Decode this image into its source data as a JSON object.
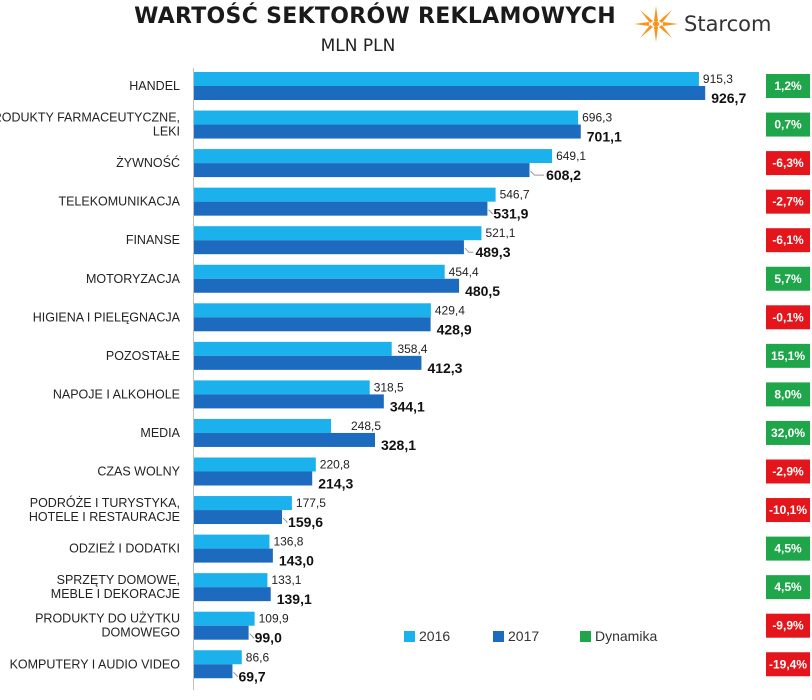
{
  "header": {
    "title": "WARTOŚĆ SEKTORÓW REKLAMOWYCH",
    "subtitle": "MLN PLN",
    "logo_text": "Starcom"
  },
  "colors": {
    "bar_2016": "#1ab1ec",
    "bar_2017": "#1d6bbf",
    "positive": "#1fa64a",
    "negative": "#e4161b",
    "axis": "#bfbfbf"
  },
  "chart_data": {
    "type": "bar",
    "orientation": "horizontal",
    "title": "WARTOŚĆ SEKTORÓW REKLAMOWYCH",
    "subtitle": "MLN PLN",
    "categories": [
      [
        "HANDEL"
      ],
      [
        "PRODUKTY FARMACEUTYCZNE,",
        "LEKI"
      ],
      [
        "ŻYWNOŚĆ"
      ],
      [
        "TELEKOMUNIKACJA"
      ],
      [
        "FINANSE"
      ],
      [
        "MOTORYZACJA"
      ],
      [
        "HIGIENA I PIELĘGNACJA"
      ],
      [
        "POZOSTAŁE"
      ],
      [
        "NAPOJE I ALKOHOLE"
      ],
      [
        "MEDIA"
      ],
      [
        "CZAS WOLNY"
      ],
      [
        "PODRÓŻE I TURYSTYKA,",
        "HOTELE I RESTAURACJE"
      ],
      [
        "ODZIEŻ I DODATKI"
      ],
      [
        "SPRZĘTY DOMOWE,",
        "MEBLE I DEKORACJE"
      ],
      [
        "PRODUKTY DO UŻYTKU",
        "DOMOWEGO"
      ],
      [
        "KOMPUTERY I AUDIO VIDEO"
      ]
    ],
    "series": [
      {
        "name": "2016",
        "values": [
          915.3,
          696.3,
          649.1,
          546.7,
          521.1,
          454.4,
          429.4,
          358.4,
          318.5,
          248.5,
          220.8,
          177.5,
          136.8,
          133.1,
          109.9,
          86.6
        ],
        "labels": [
          "915,3",
          "696,3",
          "649,1",
          "546,7",
          "521,1",
          "454,4",
          "429,4",
          "358,4",
          "318,5",
          "248,5",
          "220,8",
          "177,5",
          "136,8",
          "133,1",
          "109,9",
          "86,6"
        ]
      },
      {
        "name": "2017",
        "values": [
          926.7,
          701.1,
          608.2,
          531.9,
          489.3,
          480.5,
          428.9,
          412.3,
          344.1,
          328.1,
          214.3,
          159.6,
          143.0,
          139.1,
          99.0,
          69.7
        ],
        "labels": [
          "926,7",
          "701,1",
          "608,2",
          "531,9",
          "489,3",
          "480,5",
          "428,9",
          "412,3",
          "344,1",
          "328,1",
          "214,3",
          "159,6",
          "143,0",
          "139,1",
          "99,0",
          "69,7"
        ]
      }
    ],
    "dynamika": {
      "name": "Dynamika",
      "values": [
        1.2,
        0.7,
        -6.3,
        -2.7,
        -6.1,
        5.7,
        -0.1,
        15.1,
        8.0,
        32.0,
        -2.9,
        -10.1,
        4.5,
        4.5,
        -9.9,
        -19.4
      ],
      "labels": [
        "1,2%",
        "0,7%",
        "-6,3%",
        "-2,7%",
        "-6,1%",
        "5,7%",
        "-0,1%",
        "15,1%",
        "8,0%",
        "32,0%",
        "-2,9%",
        "-10,1%",
        "4,5%",
        "4,5%",
        "-9,9%",
        "-19,4%"
      ]
    },
    "xlim": [
      0,
      1000
    ],
    "legend_position": "bottom-right",
    "legend": [
      "2016",
      "2017",
      "Dynamika"
    ],
    "grid": false
  }
}
